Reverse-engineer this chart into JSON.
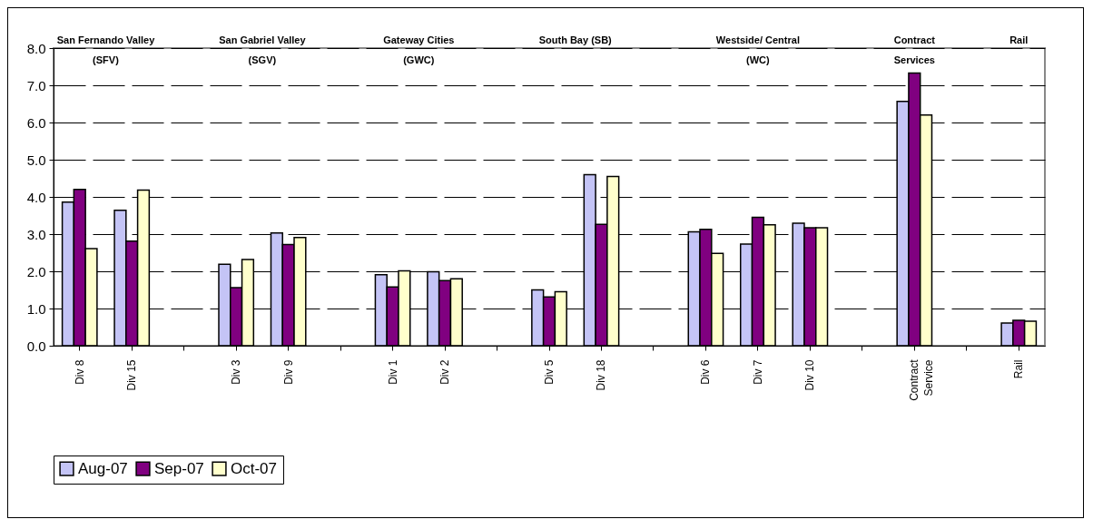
{
  "chart_data": {
    "type": "bar",
    "categories": [
      "Div 8",
      "Div 15",
      null,
      "Div 3",
      "Div 9",
      null,
      "Div 1",
      "Div 2",
      null,
      "Div 5",
      "Div 18",
      null,
      "Div 6",
      "Div 7",
      "Div 10",
      null,
      "Contract Service",
      null,
      "Rail"
    ],
    "series": [
      {
        "name": "Aug-07",
        "color": "#c4c4f6",
        "values": [
          3.86,
          3.64,
          null,
          2.19,
          3.03,
          null,
          1.91,
          1.99,
          null,
          1.5,
          4.6,
          null,
          3.06,
          2.73,
          3.29,
          null,
          6.57,
          null,
          0.61
        ]
      },
      {
        "name": "Sep-07",
        "color": "#800080",
        "values": [
          4.2,
          2.81,
          null,
          1.56,
          2.72,
          null,
          1.58,
          1.75,
          null,
          1.31,
          3.26,
          null,
          3.13,
          3.45,
          3.17,
          null,
          7.33,
          null,
          0.68
        ]
      },
      {
        "name": "Oct-07",
        "color": "#ffffcc",
        "values": [
          2.61,
          4.18,
          null,
          2.32,
          2.91,
          null,
          2.01,
          1.8,
          null,
          1.45,
          4.55,
          null,
          2.48,
          3.25,
          3.17,
          null,
          6.2,
          null,
          0.66
        ]
      }
    ],
    "ylim": [
      0,
      8
    ],
    "yticks": [
      {
        "value": 0,
        "label": "0.0"
      },
      {
        "value": 1,
        "label": "1.0"
      },
      {
        "value": 2,
        "label": "2.0"
      },
      {
        "value": 3,
        "label": "3.0"
      },
      {
        "value": 4,
        "label": "4.0"
      },
      {
        "value": 5,
        "label": "5.0"
      },
      {
        "value": 6,
        "label": "6.0"
      },
      {
        "value": 7,
        "label": "7.0"
      },
      {
        "value": 8,
        "label": "8.0"
      }
    ],
    "grid": "y",
    "legend": "bottom",
    "annotations": [
      "San Fernando Valley\n(SFV)",
      "San Gabriel Valley\n(SGV)",
      "Gateway Cities\n(GWC)",
      "South Bay (SB)",
      "Westside/ Central\n(WC)",
      "Contract\nServices",
      "Rail"
    ]
  }
}
